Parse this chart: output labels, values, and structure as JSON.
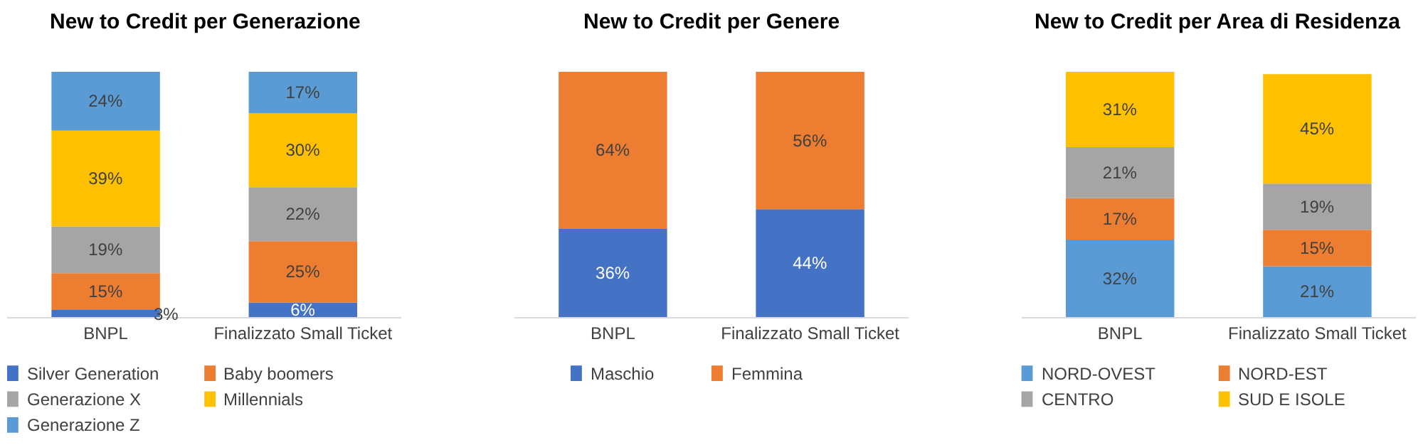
{
  "chart_data": [
    {
      "type": "bar",
      "title": "New to Credit per Generazione",
      "categories": [
        "BNPL",
        "Finalizzato Small Ticket"
      ],
      "stacked": true,
      "legend": "bottom",
      "tick_labels": "x",
      "grid": false,
      "series": [
        {
          "name": "Silver Generation",
          "color": "#4472c4",
          "values": [
            3,
            6
          ],
          "value_labels": [
            "3%",
            "6%"
          ]
        },
        {
          "name": "Baby boomers",
          "color": "#ed7d31",
          "values": [
            15,
            25
          ],
          "value_labels": [
            "15%",
            "25%"
          ]
        },
        {
          "name": "Generazione X",
          "color": "#a5a5a5",
          "values": [
            19,
            22
          ],
          "value_labels": [
            "19%",
            "22%"
          ]
        },
        {
          "name": "Millennials",
          "color": "#ffc000",
          "values": [
            39,
            30
          ],
          "value_labels": [
            "39%",
            "30%"
          ]
        },
        {
          "name": "Generazione Z",
          "color": "#5b9bd5",
          "values": [
            24,
            17
          ],
          "value_labels": [
            "24%",
            "17%"
          ]
        }
      ]
    },
    {
      "type": "bar",
      "title": "New to Credit per Genere",
      "categories": [
        "BNPL",
        "Finalizzato Small Ticket"
      ],
      "stacked": true,
      "legend": "bottom",
      "tick_labels": "x",
      "grid": false,
      "series": [
        {
          "name": "Maschio",
          "color": "#4472c4",
          "values": [
            36,
            44
          ],
          "value_labels": [
            "36%",
            "44%"
          ]
        },
        {
          "name": "Femmina",
          "color": "#ed7d31",
          "values": [
            64,
            56
          ],
          "value_labels": [
            "64%",
            "56%"
          ]
        }
      ]
    },
    {
      "type": "bar",
      "title": "New to Credit per Area di Residenza",
      "categories": [
        "BNPL",
        "Finalizzato Small Ticket"
      ],
      "stacked": true,
      "legend": "bottom",
      "tick_labels": "x",
      "grid": false,
      "series": [
        {
          "name": "NORD-OVEST",
          "color": "#5b9bd5",
          "values": [
            32,
            21
          ],
          "value_labels": [
            "32%",
            "21%"
          ]
        },
        {
          "name": "NORD-EST",
          "color": "#ed7d31",
          "values": [
            17,
            15
          ],
          "value_labels": [
            "17%",
            "15%"
          ]
        },
        {
          "name": "CENTRO",
          "color": "#a5a5a5",
          "values": [
            21,
            19
          ],
          "value_labels": [
            "21%",
            "19%"
          ]
        },
        {
          "name": "SUD E ISOLE",
          "color": "#ffc000",
          "values": [
            31,
            45
          ],
          "value_labels": [
            "31%",
            "45%"
          ]
        }
      ]
    }
  ]
}
